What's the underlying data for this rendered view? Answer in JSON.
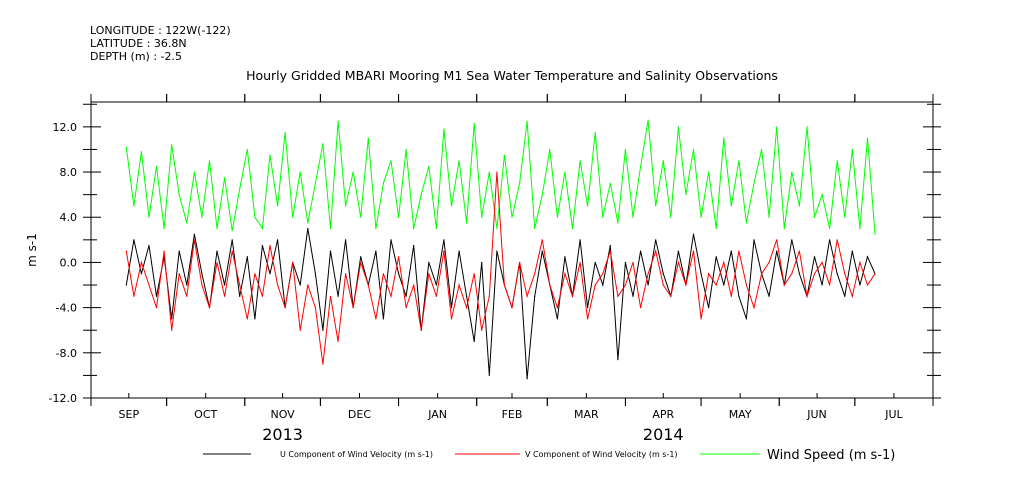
{
  "header": {
    "longitude": "LONGITUDE : 122W(-122)",
    "latitude": "LATITUDE : 36.8N",
    "depth": "DEPTH (m) : -2.5"
  },
  "chart_data": {
    "type": "line",
    "title": "Hourly Gridded MBARI Mooring M1 Sea Water Temperature and Salinity Observations",
    "ylabel": "m s-1",
    "xlabel": "",
    "ylim": [
      -12,
      14.2
    ],
    "yticks": [
      "12.0",
      "8.0",
      "4.0",
      "0.0",
      "-4.0",
      "-8.0",
      "-12.0"
    ],
    "ytick_values": [
      12,
      8,
      4,
      0,
      -4,
      -8,
      -12
    ],
    "x_range": [
      "2013-09-01",
      "2014-08-01"
    ],
    "months": [
      "SEP",
      "OCT",
      "NOV",
      "DEC",
      "JAN",
      "FEB",
      "MAR",
      "APR",
      "MAY",
      "JUN",
      "JUL"
    ],
    "month_days": [
      30,
      31,
      30,
      31,
      31,
      28,
      31,
      30,
      31,
      30,
      31
    ],
    "years": [
      {
        "label": "2013",
        "month_index": 2
      },
      {
        "label": "2014",
        "month_index": 7
      }
    ],
    "x_start_day": 14,
    "x_step_days": 3,
    "series": [
      {
        "name": "Wind Speed (m s-1)",
        "color": "#00ff00",
        "values": [
          10.2,
          5,
          9.8,
          4,
          8.5,
          3,
          10.4,
          6,
          3.5,
          8,
          4,
          9,
          3,
          7.5,
          2.8,
          6.5,
          10,
          4,
          3,
          9.5,
          5,
          11.5,
          4,
          8,
          3.5,
          7,
          10.5,
          3,
          12.5,
          5,
          8,
          4,
          11,
          3,
          7,
          9,
          4,
          10,
          3,
          6,
          8.5,
          3,
          11.8,
          5,
          9,
          3.5,
          12.3,
          4,
          8,
          3,
          9.5,
          4,
          7,
          12.5,
          3,
          6,
          10,
          4,
          8,
          3,
          9,
          5,
          11.5,
          4,
          7,
          3.5,
          10,
          4,
          8.5,
          12.6,
          5,
          9,
          4,
          12,
          6,
          10,
          4,
          8,
          3,
          11,
          5,
          9,
          3.5,
          7,
          10,
          4,
          12,
          3,
          8,
          5,
          12,
          4,
          6,
          3,
          9,
          4,
          10,
          3,
          11,
          2.5
        ]
      },
      {
        "name": "U Component of Wind Velocity (m s-1)",
        "color": "#000000",
        "values": [
          -2,
          2,
          -1,
          1.5,
          -3,
          0.5,
          -5,
          1,
          -2,
          2.5,
          -1,
          -4,
          1,
          -2,
          2,
          -3,
          0.5,
          -5,
          1.5,
          -1,
          2,
          -4,
          0,
          -2,
          3,
          -1,
          -6,
          1,
          -3,
          2,
          -4,
          0.5,
          -2,
          1,
          -5,
          2,
          -1,
          -3,
          1.5,
          -6,
          0,
          -2,
          2,
          -4,
          1,
          -3,
          -7,
          0,
          -10,
          1,
          -2,
          -4,
          0,
          -10.3,
          -3,
          1,
          -2,
          -5,
          0.5,
          -3,
          2,
          -4,
          0,
          -2,
          1.5,
          -8.6,
          0,
          -3,
          1,
          -2,
          2,
          -1,
          -3,
          1,
          -2,
          2.5,
          -1,
          -4,
          0.5,
          -2,
          1,
          -3,
          -5,
          2,
          -1,
          -3,
          1,
          -2,
          2,
          -1,
          -3,
          0.5,
          -2,
          2,
          -1,
          -3,
          1,
          -2,
          0.5,
          -1
        ]
      },
      {
        "name": "V Component of Wind Velocity (m s-1)",
        "color": "#ff0000",
        "values": [
          1,
          -3,
          0,
          -2,
          -4,
          1,
          -6,
          -1,
          -3,
          2,
          -2,
          -4,
          0,
          -3,
          1,
          -2,
          -5,
          -1,
          -3,
          1.5,
          -2,
          -4,
          0,
          -6,
          -2,
          -4,
          -9,
          -3,
          -7,
          -1,
          -4,
          0,
          -2,
          -5,
          -1,
          -3,
          0.5,
          -4,
          -2,
          -6,
          -1,
          -3,
          1,
          -5,
          -2,
          -4,
          -1,
          -6,
          -3,
          8,
          -2,
          -4,
          0,
          -3,
          -1,
          2,
          -2,
          -4,
          -1,
          -3,
          0,
          -5,
          -2,
          -1,
          1,
          -3,
          -2,
          0,
          -4,
          -1,
          1,
          -2,
          -3,
          0,
          -2,
          1,
          -5,
          -1,
          -2,
          0,
          -3,
          1,
          -2,
          -4,
          -1,
          0,
          2,
          -2,
          -1,
          1,
          -3,
          -1,
          0,
          -2,
          2,
          -1,
          -3,
          0,
          -2,
          -1
        ]
      }
    ],
    "legend_placement": "bottom"
  }
}
